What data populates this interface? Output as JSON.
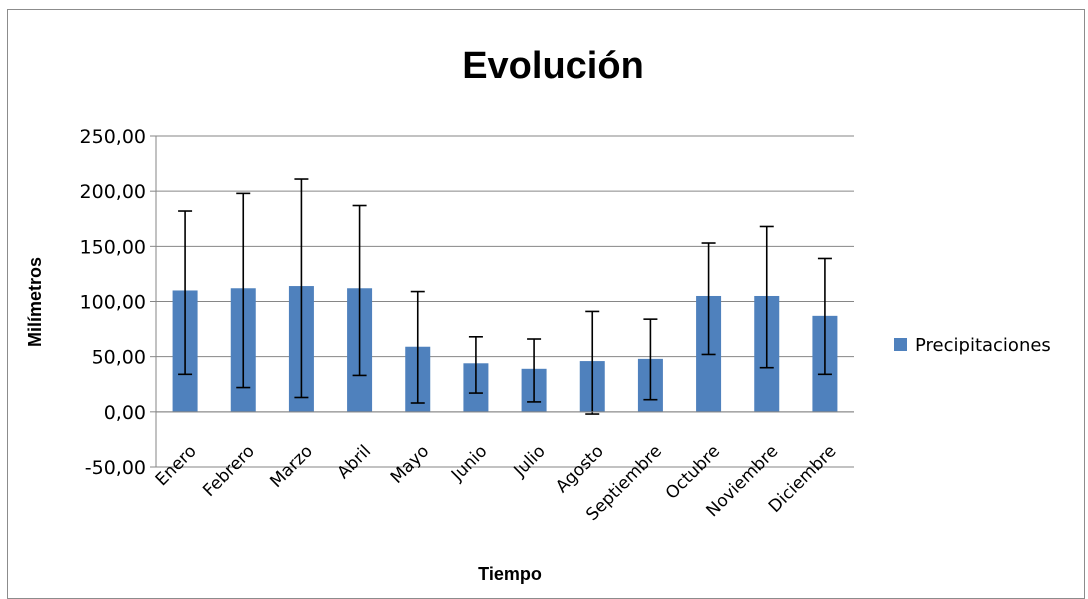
{
  "colors": {
    "bar": "#4F81BD",
    "grid": "#868686",
    "error_bar": "#000000"
  },
  "chart_data": {
    "type": "bar",
    "title": "Evolución",
    "xlabel": "Tiempo",
    "ylabel": "Milímetros",
    "ylim": [
      -50,
      250
    ],
    "yticks": [
      250,
      200,
      150,
      100,
      50,
      0,
      -50
    ],
    "ytick_labels": [
      "250,00",
      "200,00",
      "150,00",
      "100,00",
      "50,00",
      "0,00",
      "-50,00"
    ],
    "grid": true,
    "legend_position": "right",
    "categories": [
      "Enero",
      "Febrero",
      "Marzo",
      "Abril",
      "Mayo",
      "Junio",
      "Julio",
      "Agosto",
      "Septiembre",
      "Octubre",
      "Noviembre",
      "Diciembre"
    ],
    "series": [
      {
        "name": "Precipitaciones",
        "values": [
          110,
          112,
          114,
          112,
          59,
          44,
          39,
          46,
          48,
          105,
          105,
          87
        ],
        "error_low": [
          34,
          22,
          13,
          33,
          8,
          17,
          9,
          -2,
          11,
          52,
          40,
          34
        ],
        "error_high": [
          182,
          198,
          211,
          187,
          109,
          68,
          66,
          91,
          84,
          153,
          168,
          139
        ]
      }
    ]
  }
}
